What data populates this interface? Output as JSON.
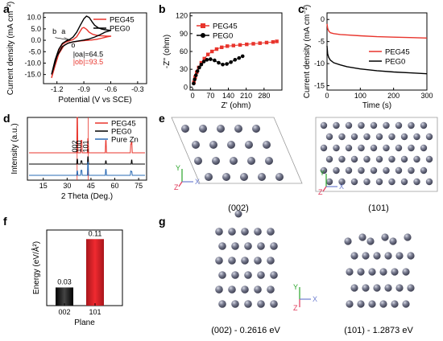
{
  "panels": {
    "a": "a",
    "b": "b",
    "c": "c",
    "d": "d",
    "e": "e",
    "f": "f",
    "g": "g"
  },
  "colors": {
    "peg45": "#e8342c",
    "peg0": "#000000",
    "purezn": "#2a6bb5",
    "atom": "#6f7183",
    "atom_light": "#b9bccb",
    "cell": "#9a9a9a",
    "axis_y": "#2aa52a",
    "axis_z": "#e03a5a",
    "axis_x": "#6f7fd0",
    "bar_peg": "#1a1a1a",
    "bar_101": "#e8242c"
  },
  "chart_data": [
    {
      "id": "a",
      "type": "line",
      "xlabel": "Potential (V vs SCE)",
      "ylabel": "Current density (mA cm⁻²)",
      "xlim": [
        -1.35,
        -0.2
      ],
      "ylim": [
        -19,
        12
      ],
      "xticks": [
        -1.2,
        -0.9,
        -0.6,
        -0.3
      ],
      "xtick_labels": [
        "-1.2",
        "-0.9",
        "-0.6",
        "-0.3"
      ],
      "yticks": [
        -15,
        -10,
        -5,
        0,
        5,
        10
      ],
      "ytick_labels": [
        "-15.0",
        "-10.0",
        "-5.0",
        "0.0",
        "5.0",
        "10.0"
      ],
      "legend": [
        "PEG45",
        "PEG0"
      ],
      "legend_position": "top-right",
      "annotations": [
        "b",
        "a",
        "o",
        "|oa|=64.5",
        "|ob|=93.5"
      ],
      "series": [
        {
          "name": "PEG45",
          "x": [
            -1.26,
            -1.22,
            -1.18,
            -1.14,
            -1.1,
            -1.06,
            -1.02,
            -0.98,
            -0.94,
            -0.92,
            -0.9,
            -0.87,
            -0.84,
            -0.8,
            -0.76,
            -0.72,
            -0.68,
            -0.64,
            -0.6,
            -0.64,
            -0.7,
            -0.76,
            -0.82,
            -0.88,
            -0.94,
            -1.0,
            -1.06,
            -1.12,
            -1.18,
            -1.22,
            -1.26
          ],
          "y": [
            -16.5,
            -9.5,
            -4.5,
            -1.8,
            -0.8,
            -0.2,
            0.3,
            1.5,
            4.0,
            5.3,
            5.6,
            4.8,
            3.5,
            2.6,
            2.2,
            2.0,
            1.9,
            1.8,
            1.8,
            1.5,
            0.9,
            0.4,
            0.1,
            -0.1,
            -0.3,
            -0.6,
            -1.0,
            -2.2,
            -6.0,
            -11.0,
            -16.5
          ]
        },
        {
          "name": "PEG0",
          "x": [
            -1.26,
            -1.22,
            -1.18,
            -1.14,
            -1.1,
            -1.06,
            -1.02,
            -0.98,
            -0.94,
            -0.9,
            -0.87,
            -0.84,
            -0.81,
            -0.78,
            -0.74,
            -0.7,
            -0.66,
            -0.62,
            -0.6,
            -0.66,
            -0.72,
            -0.78,
            -0.84,
            -0.9,
            -0.96,
            -1.02,
            -1.08,
            -1.14,
            -1.2,
            -1.24,
            -1.26
          ],
          "y": [
            -15.0,
            -8.5,
            -4.0,
            -1.4,
            -0.4,
            0.3,
            1.4,
            3.5,
            6.5,
            9.4,
            10.6,
            10.0,
            8.2,
            6.6,
            5.5,
            4.9,
            4.6,
            4.4,
            4.3,
            3.6,
            2.4,
            1.4,
            0.6,
            0.1,
            -0.3,
            -0.7,
            -1.3,
            -2.8,
            -7.0,
            -12.5,
            -15.0
          ]
        }
      ]
    },
    {
      "id": "b",
      "type": "scatter",
      "xlabel": "Z' (ohm)",
      "ylabel": "-Z'' (ohm)",
      "xlim": [
        -10,
        350
      ],
      "ylim": [
        -5,
        125
      ],
      "xticks": [
        0,
        70,
        140,
        210,
        280
      ],
      "xtick_labels": [
        "0",
        "70",
        "140",
        "210",
        "280"
      ],
      "yticks": [
        0,
        30,
        60,
        90,
        120
      ],
      "ytick_labels": [
        "0",
        "30",
        "60",
        "90",
        "120"
      ],
      "legend": [
        "PEG45",
        "PEG0"
      ],
      "legend_position": "top-left",
      "series": [
        {
          "name": "PEG45",
          "x": [
            5,
            10,
            16,
            24,
            34,
            46,
            60,
            76,
            94,
            114,
            136,
            160,
            186,
            212,
            238,
            264,
            290,
            315,
            330
          ],
          "y": [
            8,
            17,
            25,
            33,
            41,
            48,
            55,
            60,
            64,
            67,
            69,
            70,
            71,
            72,
            73,
            74,
            75,
            76,
            77
          ]
        },
        {
          "name": "PEG0",
          "x": [
            4,
            8,
            13,
            19,
            26,
            34,
            44,
            56,
            70,
            86,
            102,
            118,
            134,
            150,
            166,
            182,
            196
          ],
          "y": [
            6,
            13,
            20,
            27,
            33,
            38,
            43,
            46,
            47,
            45,
            41,
            38,
            39,
            42,
            46,
            49,
            52
          ]
        }
      ]
    },
    {
      "id": "c",
      "type": "line",
      "xlabel": "Time (s)",
      "ylabel": "Current density (mA cm⁻²)",
      "xlim": [
        0,
        300
      ],
      "ylim": [
        -16,
        1.5
      ],
      "xticks": [
        0,
        100,
        200,
        300
      ],
      "xtick_labels": [
        "0",
        "100",
        "200",
        "300"
      ],
      "yticks": [
        0,
        -5,
        -10,
        -15
      ],
      "ytick_labels": [
        "0",
        "-5",
        "-10",
        "-15"
      ],
      "legend": [
        "PEG45",
        "PEG0"
      ],
      "legend_position": "center-right",
      "series": [
        {
          "name": "PEG45",
          "x": [
            0,
            2,
            5,
            10,
            20,
            40,
            60,
            100,
            150,
            200,
            250,
            300
          ],
          "y": [
            -1.0,
            -2.0,
            -2.6,
            -3.0,
            -3.2,
            -3.4,
            -3.5,
            -3.7,
            -3.9,
            -4.0,
            -4.1,
            -4.2
          ]
        },
        {
          "name": "PEG0",
          "x": [
            0,
            2,
            5,
            10,
            20,
            40,
            60,
            100,
            150,
            200,
            250,
            300
          ],
          "y": [
            -6.0,
            -7.8,
            -8.6,
            -9.2,
            -9.8,
            -10.3,
            -10.7,
            -11.2,
            -11.6,
            -11.9,
            -12.1,
            -12.3
          ]
        }
      ]
    },
    {
      "id": "d",
      "type": "line",
      "xlabel": "2 Theta (Deg.)",
      "ylabel": "Intensity (a.u.)",
      "xlim": [
        5,
        80
      ],
      "xticks": [
        15,
        30,
        45,
        60,
        75
      ],
      "xtick_labels": [
        "15",
        "30",
        "45",
        "60",
        "75"
      ],
      "legend": [
        "PEG45",
        "PEG0",
        "Pure Zn"
      ],
      "legend_position": "top-right",
      "peak_labels": [
        {
          "text": "002",
          "x": 36.3
        },
        {
          "text": "100",
          "x": 39.0
        },
        {
          "text": "101",
          "x": 43.2
        }
      ],
      "reference_lines_x": [
        36.3,
        43.2
      ],
      "series": [
        {
          "name": "PEG45",
          "peaks": [
            [
              36.3,
              1.0
            ],
            [
              39.0,
              0.35
            ],
            [
              43.2,
              0.4
            ],
            [
              54.3,
              0.35
            ],
            [
              70.1,
              0.25
            ],
            [
              70.6,
              0.3
            ]
          ]
        },
        {
          "name": "PEG0",
          "peaks": [
            [
              36.3,
              0.3
            ],
            [
              39.0,
              0.2
            ],
            [
              43.2,
              0.45
            ],
            [
              54.3,
              0.2
            ],
            [
              70.6,
              0.25
            ]
          ]
        },
        {
          "name": "Pure Zn",
          "peaks": [
            [
              36.3,
              0.3
            ],
            [
              39.0,
              0.35
            ],
            [
              43.2,
              0.9
            ],
            [
              54.3,
              0.4
            ],
            [
              70.1,
              0.3
            ],
            [
              70.6,
              0.25
            ]
          ]
        }
      ]
    },
    {
      "id": "f",
      "type": "bar",
      "xlabel": "Plane",
      "ylabel": "Energy (eV/Å²)",
      "categories": [
        "002",
        "101"
      ],
      "values": [
        0.03,
        0.11
      ],
      "value_labels": [
        "0.03",
        "0.11"
      ],
      "ylim": [
        0,
        0.125
      ]
    }
  ],
  "structures": {
    "e_left_caption": "(002)",
    "e_right_caption": "(101)",
    "g_left_caption": "(002) - 0.2616 eV",
    "g_right_caption": "(101) - 1.2873 eV",
    "axis_labels": {
      "y": "Y",
      "z": "Z",
      "x": "X"
    }
  }
}
